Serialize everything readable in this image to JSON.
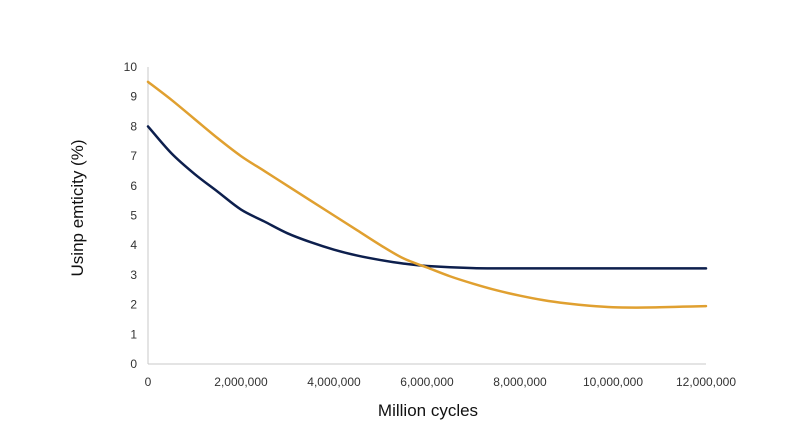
{
  "chart_data": {
    "type": "line",
    "title": "",
    "xlabel": "Million cycles",
    "ylabel": "Usinp emticity (%)",
    "xlim": [
      0,
      12000000
    ],
    "ylim": [
      0,
      10
    ],
    "x_ticks": [
      0,
      2000000,
      4000000,
      6000000,
      8000000,
      10000000,
      12000000
    ],
    "x_tick_labels": [
      "0",
      "2,000,000",
      "4,000,000",
      "6,000,000",
      "8,000,000",
      "10,000,000",
      "12,000,000"
    ],
    "y_ticks": [
      0,
      1,
      2,
      3,
      4,
      5,
      6,
      7,
      8,
      9,
      10
    ],
    "y_tick_labels": [
      "0",
      "1",
      "2",
      "3",
      "4",
      "5",
      "6",
      "7",
      "8",
      "9",
      "10"
    ],
    "grid": false,
    "legend": "none",
    "series": [
      {
        "color": "#0d1f4d",
        "x": [
          0,
          500000,
          1000000,
          1500000,
          2000000,
          2500000,
          3000000,
          3500000,
          4000000,
          4500000,
          5000000,
          5500000,
          6000000,
          7000000,
          8000000,
          9000000,
          10000000,
          11000000,
          12000000
        ],
        "y": [
          8.0,
          7.1,
          6.4,
          5.8,
          5.2,
          4.8,
          4.4,
          4.1,
          3.85,
          3.65,
          3.5,
          3.38,
          3.3,
          3.23,
          3.22,
          3.22,
          3.22,
          3.22,
          3.22
        ]
      },
      {
        "color": "#e0a030",
        "x": [
          0,
          500000,
          1000000,
          1500000,
          2000000,
          2500000,
          3000000,
          3500000,
          4000000,
          4500000,
          5000000,
          5500000,
          6000000,
          6500000,
          7000000,
          7500000,
          8000000,
          8500000,
          9000000,
          9500000,
          10000000,
          10500000,
          11000000,
          11500000,
          12000000
        ],
        "y": [
          9.5,
          8.9,
          8.25,
          7.6,
          7.0,
          6.5,
          6.0,
          5.5,
          5.0,
          4.5,
          4.0,
          3.55,
          3.25,
          2.95,
          2.7,
          2.48,
          2.3,
          2.15,
          2.04,
          1.96,
          1.91,
          1.9,
          1.91,
          1.93,
          1.95
        ]
      }
    ]
  }
}
